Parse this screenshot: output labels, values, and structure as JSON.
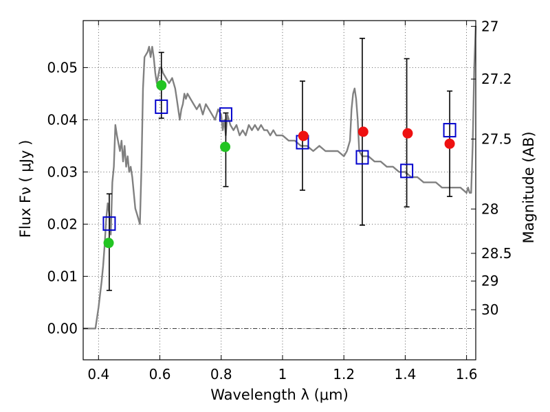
{
  "chart_data": {
    "type": "scatter",
    "xlabel": "Wavelength  λ (μm)",
    "ylabel": "Flux  Fν  ( μJy )",
    "ylabel_right": "Magnitude (AB)",
    "xlim": [
      0.35,
      1.63
    ],
    "ylim": [
      -0.006,
      0.059
    ],
    "grid": true,
    "x_ticks": [
      0.4,
      0.6,
      0.8,
      1.0,
      1.2,
      1.4,
      1.6
    ],
    "x_tick_labels": [
      "0.4",
      "0.6",
      "0.8",
      "1",
      "1.2",
      "1.4",
      "1.6"
    ],
    "y_ticks": [
      0.0,
      0.01,
      0.02,
      0.03,
      0.04,
      0.05
    ],
    "y_tick_labels": [
      "0.00",
      "0.01",
      "0.02",
      "0.03",
      "0.04",
      "0.05"
    ],
    "right_ticks": [
      {
        "label": "27",
        "flux": 0.0579
      },
      {
        "label": "27.2",
        "flux": 0.0478
      },
      {
        "label": "27.5",
        "flux": 0.0363
      },
      {
        "label": "28",
        "flux": 0.0229
      },
      {
        "label": "28.5",
        "flux": 0.0144
      },
      {
        "label": "29",
        "flux": 0.0091
      },
      {
        "label": "30",
        "flux": 0.0036
      }
    ],
    "series": [
      {
        "kind": "line",
        "color": "#808080",
        "x": [
          0.35,
          0.39,
          0.4,
          0.41,
          0.415,
          0.42,
          0.425,
          0.43,
          0.435,
          0.44,
          0.445,
          0.45,
          0.455,
          0.46,
          0.47,
          0.475,
          0.48,
          0.485,
          0.49,
          0.495,
          0.5,
          0.505,
          0.51,
          0.515,
          0.52,
          0.525,
          0.53,
          0.535,
          0.54,
          0.545,
          0.55,
          0.56,
          0.565,
          0.57,
          0.575,
          0.58,
          0.585,
          0.59,
          0.6,
          0.605,
          0.61,
          0.62,
          0.63,
          0.64,
          0.65,
          0.655,
          0.66,
          0.665,
          0.67,
          0.675,
          0.68,
          0.685,
          0.69,
          0.7,
          0.71,
          0.72,
          0.73,
          0.74,
          0.75,
          0.76,
          0.77,
          0.78,
          0.79,
          0.8,
          0.805,
          0.81,
          0.815,
          0.82,
          0.83,
          0.84,
          0.85,
          0.86,
          0.87,
          0.88,
          0.89,
          0.9,
          0.91,
          0.92,
          0.93,
          0.94,
          0.95,
          0.96,
          0.97,
          0.98,
          1.0,
          1.02,
          1.04,
          1.06,
          1.08,
          1.1,
          1.12,
          1.14,
          1.16,
          1.18,
          1.2,
          1.21,
          1.22,
          1.225,
          1.23,
          1.235,
          1.24,
          1.245,
          1.25,
          1.26,
          1.28,
          1.3,
          1.32,
          1.34,
          1.36,
          1.38,
          1.4,
          1.42,
          1.44,
          1.46,
          1.48,
          1.5,
          1.52,
          1.54,
          1.56,
          1.58,
          1.6,
          1.605,
          1.61,
          1.615,
          1.62,
          1.625,
          1.63
        ],
        "values": [
          0.0,
          0.0,
          0.004,
          0.009,
          0.012,
          0.016,
          0.021,
          0.024,
          0.022,
          0.018,
          0.028,
          0.031,
          0.039,
          0.037,
          0.034,
          0.036,
          0.032,
          0.035,
          0.031,
          0.033,
          0.03,
          0.031,
          0.029,
          0.026,
          0.023,
          0.022,
          0.021,
          0.02,
          0.031,
          0.046,
          0.052,
          0.053,
          0.054,
          0.052,
          0.054,
          0.052,
          0.049,
          0.047,
          0.05,
          0.05,
          0.049,
          0.048,
          0.047,
          0.048,
          0.046,
          0.044,
          0.042,
          0.04,
          0.042,
          0.043,
          0.045,
          0.044,
          0.045,
          0.044,
          0.043,
          0.042,
          0.043,
          0.041,
          0.043,
          0.042,
          0.041,
          0.04,
          0.042,
          0.041,
          0.038,
          0.04,
          0.037,
          0.041,
          0.039,
          0.038,
          0.039,
          0.037,
          0.038,
          0.037,
          0.039,
          0.038,
          0.039,
          0.038,
          0.039,
          0.038,
          0.038,
          0.037,
          0.038,
          0.037,
          0.037,
          0.036,
          0.036,
          0.035,
          0.035,
          0.034,
          0.035,
          0.034,
          0.034,
          0.034,
          0.033,
          0.034,
          0.036,
          0.042,
          0.045,
          0.046,
          0.044,
          0.04,
          0.034,
          0.033,
          0.033,
          0.032,
          0.032,
          0.031,
          0.031,
          0.03,
          0.03,
          0.029,
          0.029,
          0.028,
          0.028,
          0.028,
          0.027,
          0.027,
          0.027,
          0.027,
          0.026,
          0.027,
          0.026,
          0.026,
          0.035,
          0.05,
          0.058
        ]
      },
      {
        "kind": "errorbar",
        "color": "#000000",
        "x": [
          0.435,
          0.605,
          0.815,
          1.065,
          1.26,
          1.405,
          1.545
        ],
        "low": [
          0.0073,
          0.0403,
          0.0272,
          0.0265,
          0.0198,
          0.0233,
          0.0253
        ],
        "high": [
          0.0258,
          0.0529,
          0.0413,
          0.0474,
          0.0556,
          0.0517,
          0.0455
        ]
      },
      {
        "kind": "open-square",
        "color": "#0000cc",
        "x": [
          0.435,
          0.605,
          0.815,
          1.065,
          1.26,
          1.405,
          1.545
        ],
        "values": [
          0.0201,
          0.0425,
          0.041,
          0.0357,
          0.0328,
          0.0302,
          0.038
        ]
      },
      {
        "kind": "filled-circle",
        "color": "#22c422",
        "x": [
          0.433,
          0.605,
          0.813
        ],
        "values": [
          0.0164,
          0.0466,
          0.0348
        ]
      },
      {
        "kind": "filled-circle",
        "color": "#ee1111",
        "x": [
          1.068,
          1.263,
          1.408,
          1.545
        ],
        "values": [
          0.0369,
          0.0377,
          0.0374,
          0.0354
        ]
      }
    ]
  }
}
